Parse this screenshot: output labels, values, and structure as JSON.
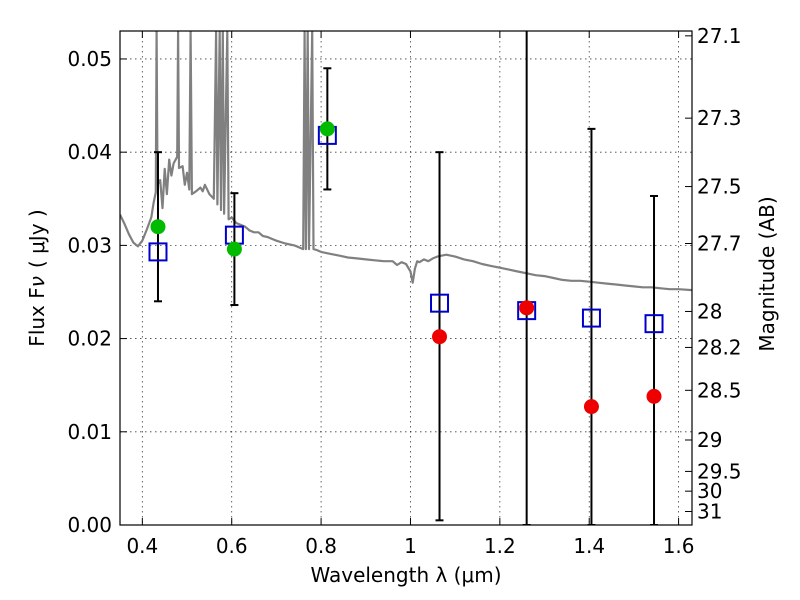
{
  "chart_data": {
    "type": "scatter",
    "title": "",
    "xlabel": "Wavelength  λ (μm)",
    "ylabel": "Flux  F",
    "ylabel_sub": "ν",
    "ylabel_unit": "( μJy )",
    "y2label": "Magnitude (AB)",
    "xlim": [
      0.35,
      1.63
    ],
    "ylim": [
      0.0,
      0.053
    ],
    "grid": true,
    "x_ticks": [
      0.4,
      0.6,
      0.8,
      1.0,
      1.2,
      1.4,
      1.6
    ],
    "x_tick_labels": [
      "0.4",
      "0.6",
      "0.8",
      "1",
      "1.2",
      "1.4",
      "1.6"
    ],
    "y_ticks": [
      0.0,
      0.01,
      0.02,
      0.03,
      0.04,
      0.05
    ],
    "y_tick_labels": [
      "0.00",
      "0.01",
      "0.02",
      "0.03",
      "0.04",
      "0.05"
    ],
    "y2_ticks": [
      {
        "label": "27.1",
        "flux": 0.05248
      },
      {
        "label": "27.3",
        "flux": 0.04365
      },
      {
        "label": "27.5",
        "flux": 0.03631
      },
      {
        "label": "27.7",
        "flux": 0.0302
      },
      {
        "label": "28",
        "flux": 0.02291
      },
      {
        "label": "28.2",
        "flux": 0.01905
      },
      {
        "label": "28.5",
        "flux": 0.01445
      },
      {
        "label": "29",
        "flux": 0.00912
      },
      {
        "label": "29.5",
        "flux": 0.00575
      },
      {
        "label": "30",
        "flux": 0.00363
      },
      {
        "label": "31",
        "flux": 0.00145
      }
    ],
    "series": [
      {
        "marker": "square",
        "color": "#0000cc",
        "points": [
          {
            "x": 0.435,
            "y": 0.0293
          },
          {
            "x": 0.606,
            "y": 0.0311
          },
          {
            "x": 0.814,
            "y": 0.0418
          },
          {
            "x": 1.065,
            "y": 0.0238
          },
          {
            "x": 1.26,
            "y": 0.023
          },
          {
            "x": 1.405,
            "y": 0.0222
          },
          {
            "x": 1.545,
            "y": 0.0216
          }
        ]
      },
      {
        "marker": "circle",
        "color": "#00bb00",
        "points": [
          {
            "x": 0.435,
            "y": 0.032,
            "err_lo": 0.008,
            "err_hi": 0.008
          },
          {
            "x": 0.606,
            "y": 0.0296,
            "err_lo": 0.006,
            "err_hi": 0.006
          },
          {
            "x": 0.814,
            "y": 0.0425,
            "err_lo": 0.0065,
            "err_hi": 0.0065
          }
        ]
      },
      {
        "marker": "circle",
        "color": "#ee0000",
        "points": [
          {
            "x": 1.065,
            "y": 0.0202,
            "err_lo": 0.0197,
            "err_hi": 0.0198
          },
          {
            "x": 1.26,
            "y": 0.0233,
            "err_lo": 0.0233,
            "err_hi": 0.03
          },
          {
            "x": 1.405,
            "y": 0.0127,
            "err_lo": 0.0127,
            "err_hi": 0.0298
          },
          {
            "x": 1.545,
            "y": 0.0138,
            "err_lo": 0.0138,
            "err_hi": 0.0215
          }
        ]
      },
      {
        "type": "line",
        "color": "#808080",
        "points": [
          [
            0.35,
            0.0333
          ],
          [
            0.36,
            0.0323
          ],
          [
            0.37,
            0.0312
          ],
          [
            0.38,
            0.0303
          ],
          [
            0.39,
            0.0299
          ],
          [
            0.4,
            0.0305
          ],
          [
            0.41,
            0.0317
          ],
          [
            0.42,
            0.033
          ],
          [
            0.425,
            0.0345
          ],
          [
            0.43,
            0.0357
          ],
          [
            0.432,
            0.053
          ],
          [
            0.434,
            0.0365
          ],
          [
            0.44,
            0.037
          ],
          [
            0.445,
            0.034
          ],
          [
            0.45,
            0.0382
          ],
          [
            0.455,
            0.0355
          ],
          [
            0.46,
            0.0392
          ],
          [
            0.465,
            0.0375
          ],
          [
            0.47,
            0.0388
          ],
          [
            0.478,
            0.0395
          ],
          [
            0.48,
            0.053
          ],
          [
            0.482,
            0.0383
          ],
          [
            0.49,
            0.0385
          ],
          [
            0.495,
            0.0365
          ],
          [
            0.5,
            0.0378
          ],
          [
            0.505,
            0.036
          ],
          [
            0.508,
            0.053
          ],
          [
            0.511,
            0.0355
          ],
          [
            0.52,
            0.0358
          ],
          [
            0.53,
            0.0362
          ],
          [
            0.535,
            0.0358
          ],
          [
            0.54,
            0.0365
          ],
          [
            0.55,
            0.0355
          ],
          [
            0.56,
            0.035
          ],
          [
            0.565,
            0.053
          ],
          [
            0.568,
            0.0344
          ],
          [
            0.573,
            0.053
          ],
          [
            0.576,
            0.0338
          ],
          [
            0.58,
            0.053
          ],
          [
            0.583,
            0.0334
          ],
          [
            0.59,
            0.053
          ],
          [
            0.593,
            0.0328
          ],
          [
            0.6,
            0.033
          ],
          [
            0.61,
            0.0324
          ],
          [
            0.62,
            0.0322
          ],
          [
            0.63,
            0.032
          ],
          [
            0.64,
            0.0316
          ],
          [
            0.65,
            0.0314
          ],
          [
            0.66,
            0.0314
          ],
          [
            0.67,
            0.031
          ],
          [
            0.68,
            0.0309
          ],
          [
            0.69,
            0.0307
          ],
          [
            0.7,
            0.0305
          ],
          [
            0.72,
            0.0302
          ],
          [
            0.74,
            0.03
          ],
          [
            0.75,
            0.0298
          ],
          [
            0.76,
            0.0296
          ],
          [
            0.763,
            0.053
          ],
          [
            0.766,
            0.0296
          ],
          [
            0.77,
            0.053
          ],
          [
            0.773,
            0.0296
          ],
          [
            0.78,
            0.053
          ],
          [
            0.783,
            0.0296
          ],
          [
            0.79,
            0.0295
          ],
          [
            0.8,
            0.0293
          ],
          [
            0.82,
            0.0291
          ],
          [
            0.84,
            0.0289
          ],
          [
            0.86,
            0.0287
          ],
          [
            0.88,
            0.0286
          ],
          [
            0.9,
            0.0285
          ],
          [
            0.92,
            0.0284
          ],
          [
            0.94,
            0.0283
          ],
          [
            0.96,
            0.0283
          ],
          [
            0.97,
            0.0279
          ],
          [
            0.98,
            0.0282
          ],
          [
            0.99,
            0.028
          ],
          [
            1.0,
            0.0272
          ],
          [
            1.005,
            0.026
          ],
          [
            1.01,
            0.0275
          ],
          [
            1.015,
            0.0283
          ],
          [
            1.02,
            0.0282
          ],
          [
            1.03,
            0.0285
          ],
          [
            1.04,
            0.0283
          ],
          [
            1.05,
            0.0286
          ],
          [
            1.06,
            0.0288
          ],
          [
            1.08,
            0.029
          ],
          [
            1.1,
            0.0288
          ],
          [
            1.12,
            0.0285
          ],
          [
            1.14,
            0.0283
          ],
          [
            1.16,
            0.028
          ],
          [
            1.18,
            0.0278
          ],
          [
            1.2,
            0.0276
          ],
          [
            1.22,
            0.0274
          ],
          [
            1.24,
            0.0272
          ],
          [
            1.26,
            0.027
          ],
          [
            1.28,
            0.0268
          ],
          [
            1.3,
            0.0267
          ],
          [
            1.32,
            0.0265
          ],
          [
            1.34,
            0.0263
          ],
          [
            1.36,
            0.0262
          ],
          [
            1.38,
            0.0262
          ],
          [
            1.4,
            0.0261
          ],
          [
            1.42,
            0.026
          ],
          [
            1.44,
            0.0259
          ],
          [
            1.46,
            0.0258
          ],
          [
            1.48,
            0.0257
          ],
          [
            1.5,
            0.0256
          ],
          [
            1.52,
            0.0255
          ],
          [
            1.54,
            0.0255
          ],
          [
            1.56,
            0.0254
          ],
          [
            1.58,
            0.0253
          ],
          [
            1.6,
            0.0253
          ],
          [
            1.63,
            0.0252
          ]
        ]
      }
    ]
  }
}
